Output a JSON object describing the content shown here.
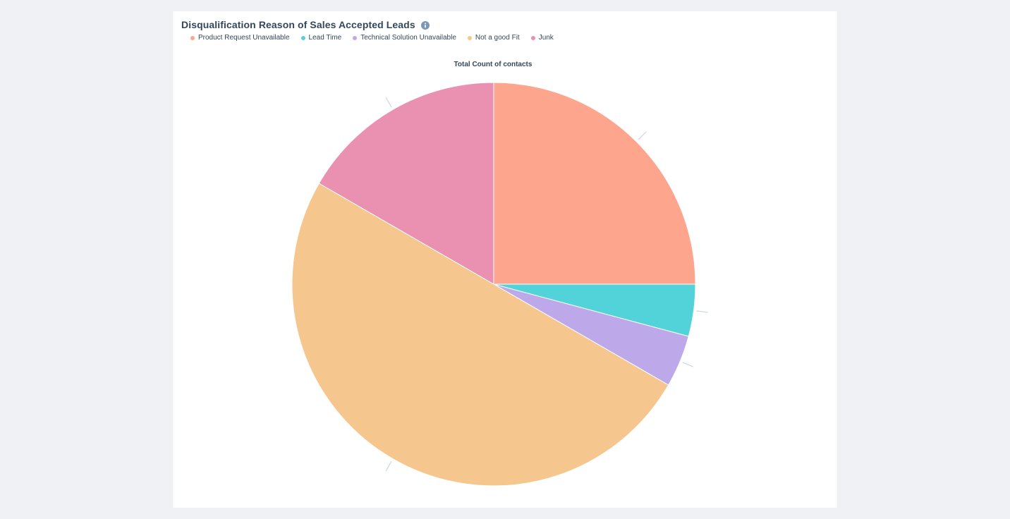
{
  "title": "Disqualification Reason of Sales Accepted Leads",
  "info_icon": "info-icon",
  "chart_data": {
    "type": "pie",
    "title": "Total Count of contacts",
    "series": [
      {
        "name": "Product Request Unavailable",
        "value": 6,
        "color": "#fea58e"
      },
      {
        "name": "Lead Time",
        "value": 1,
        "color": "#51d3d9"
      },
      {
        "name": "Technical Solution Unavailable",
        "value": 1,
        "color": "#bda9ea"
      },
      {
        "name": "Not a good Fit",
        "value": 12,
        "color": "#f5c78e"
      },
      {
        "name": "Junk",
        "value": 4,
        "color": "#ea90b1"
      }
    ],
    "legend": "top-left",
    "start_angle_deg": 0,
    "direction": "clockwise"
  }
}
